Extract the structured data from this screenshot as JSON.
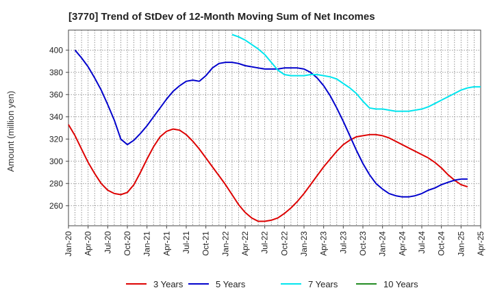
{
  "chart_data": {
    "type": "line",
    "title": "[3770]  Trend of StDev of 12-Month Moving Sum of Net Incomes",
    "ylabel": "Amount (million yen)",
    "xlabel": "",
    "ylim": [
      242,
      418
    ],
    "yticks": [
      260,
      280,
      300,
      320,
      340,
      360,
      380,
      400
    ],
    "xticks": [
      "Jan-20",
      "Apr-20",
      "Jul-20",
      "Oct-20",
      "Jan-21",
      "Apr-21",
      "Jul-21",
      "Oct-21",
      "Jan-22",
      "Apr-22",
      "Jul-22",
      "Oct-22",
      "Jan-23",
      "Apr-23",
      "Jul-23",
      "Oct-23",
      "Jan-24",
      "Apr-24",
      "Jul-24",
      "Oct-24",
      "Jan-25",
      "Apr-25"
    ],
    "grid": true,
    "legend_position": "bottom",
    "series": [
      {
        "name": "3 Years",
        "color": "#dd0000",
        "points": [
          [
            "2020-01",
            333
          ],
          [
            "2020-02",
            323
          ],
          [
            "2020-03",
            311
          ],
          [
            "2020-04",
            299
          ],
          [
            "2020-05",
            289
          ],
          [
            "2020-06",
            280
          ],
          [
            "2020-07",
            274
          ],
          [
            "2020-08",
            271
          ],
          [
            "2020-09",
            270
          ],
          [
            "2020-10",
            272
          ],
          [
            "2020-11",
            279
          ],
          [
            "2020-12",
            290
          ],
          [
            "2021-01",
            302
          ],
          [
            "2021-02",
            313
          ],
          [
            "2021-03",
            322
          ],
          [
            "2021-04",
            327
          ],
          [
            "2021-05",
            329
          ],
          [
            "2021-06",
            328
          ],
          [
            "2021-07",
            324
          ],
          [
            "2021-08",
            318
          ],
          [
            "2021-09",
            311
          ],
          [
            "2021-10",
            303
          ],
          [
            "2021-11",
            295
          ],
          [
            "2021-12",
            287
          ],
          [
            "2022-01",
            279
          ],
          [
            "2022-02",
            270
          ],
          [
            "2022-03",
            261
          ],
          [
            "2022-04",
            254
          ],
          [
            "2022-05",
            249
          ],
          [
            "2022-06",
            246
          ],
          [
            "2022-07",
            246
          ],
          [
            "2022-08",
            247
          ],
          [
            "2022-09",
            249
          ],
          [
            "2022-10",
            253
          ],
          [
            "2022-11",
            258
          ],
          [
            "2022-12",
            264
          ],
          [
            "2023-01",
            271
          ],
          [
            "2023-02",
            279
          ],
          [
            "2023-03",
            287
          ],
          [
            "2023-04",
            295
          ],
          [
            "2023-05",
            302
          ],
          [
            "2023-06",
            309
          ],
          [
            "2023-07",
            315
          ],
          [
            "2023-08",
            319
          ],
          [
            "2023-09",
            322
          ],
          [
            "2023-10",
            323
          ],
          [
            "2023-11",
            324
          ],
          [
            "2023-12",
            324
          ],
          [
            "2024-01",
            323
          ],
          [
            "2024-02",
            321
          ],
          [
            "2024-03",
            318
          ],
          [
            "2024-04",
            315
          ],
          [
            "2024-05",
            312
          ],
          [
            "2024-06",
            309
          ],
          [
            "2024-07",
            306
          ],
          [
            "2024-08",
            303
          ],
          [
            "2024-09",
            299
          ],
          [
            "2024-10",
            294
          ],
          [
            "2024-11",
            288
          ],
          [
            "2024-12",
            283
          ],
          [
            "2025-01",
            279
          ],
          [
            "2025-02",
            277
          ]
        ]
      },
      {
        "name": "5 Years",
        "color": "#0000cc",
        "points": [
          [
            "2020-02",
            400
          ],
          [
            "2020-03",
            393
          ],
          [
            "2020-04",
            385
          ],
          [
            "2020-05",
            375
          ],
          [
            "2020-06",
            364
          ],
          [
            "2020-07",
            351
          ],
          [
            "2020-08",
            337
          ],
          [
            "2020-09",
            320
          ],
          [
            "2020-10",
            315
          ],
          [
            "2020-11",
            319
          ],
          [
            "2020-12",
            325
          ],
          [
            "2021-01",
            332
          ],
          [
            "2021-02",
            340
          ],
          [
            "2021-03",
            348
          ],
          [
            "2021-04",
            356
          ],
          [
            "2021-05",
            363
          ],
          [
            "2021-06",
            368
          ],
          [
            "2021-07",
            372
          ],
          [
            "2021-08",
            373
          ],
          [
            "2021-09",
            372
          ],
          [
            "2021-10",
            377
          ],
          [
            "2021-11",
            384
          ],
          [
            "2021-12",
            388
          ],
          [
            "2022-01",
            389
          ],
          [
            "2022-02",
            389
          ],
          [
            "2022-03",
            388
          ],
          [
            "2022-04",
            386
          ],
          [
            "2022-05",
            385
          ],
          [
            "2022-06",
            384
          ],
          [
            "2022-07",
            383
          ],
          [
            "2022-08",
            383
          ],
          [
            "2022-09",
            383
          ],
          [
            "2022-10",
            384
          ],
          [
            "2022-11",
            384
          ],
          [
            "2022-12",
            384
          ],
          [
            "2023-01",
            383
          ],
          [
            "2023-02",
            380
          ],
          [
            "2023-03",
            375
          ],
          [
            "2023-04",
            368
          ],
          [
            "2023-05",
            359
          ],
          [
            "2023-06",
            348
          ],
          [
            "2023-07",
            336
          ],
          [
            "2023-08",
            323
          ],
          [
            "2023-09",
            310
          ],
          [
            "2023-10",
            298
          ],
          [
            "2023-11",
            288
          ],
          [
            "2023-12",
            280
          ],
          [
            "2024-01",
            275
          ],
          [
            "2024-02",
            271
          ],
          [
            "2024-03",
            269
          ],
          [
            "2024-04",
            268
          ],
          [
            "2024-05",
            268
          ],
          [
            "2024-06",
            269
          ],
          [
            "2024-07",
            271
          ],
          [
            "2024-08",
            274
          ],
          [
            "2024-09",
            276
          ],
          [
            "2024-10",
            279
          ],
          [
            "2024-11",
            281
          ],
          [
            "2024-12",
            283
          ],
          [
            "2025-01",
            284
          ],
          [
            "2025-02",
            284
          ]
        ]
      },
      {
        "name": "7 Years",
        "color": "#00e5ee",
        "points": [
          [
            "2022-02",
            414
          ],
          [
            "2022-03",
            412
          ],
          [
            "2022-04",
            409
          ],
          [
            "2022-05",
            405
          ],
          [
            "2022-06",
            401
          ],
          [
            "2022-07",
            396
          ],
          [
            "2022-08",
            389
          ],
          [
            "2022-09",
            382
          ],
          [
            "2022-10",
            378
          ],
          [
            "2022-11",
            377
          ],
          [
            "2022-12",
            377
          ],
          [
            "2023-01",
            377
          ],
          [
            "2023-02",
            378
          ],
          [
            "2023-03",
            378
          ],
          [
            "2023-04",
            377
          ],
          [
            "2023-05",
            376
          ],
          [
            "2023-06",
            374
          ],
          [
            "2023-07",
            370
          ],
          [
            "2023-08",
            366
          ],
          [
            "2023-09",
            361
          ],
          [
            "2023-10",
            354
          ],
          [
            "2023-11",
            348
          ],
          [
            "2023-12",
            347
          ],
          [
            "2024-01",
            347
          ],
          [
            "2024-02",
            346
          ],
          [
            "2024-03",
            345
          ],
          [
            "2024-04",
            345
          ],
          [
            "2024-05",
            345
          ],
          [
            "2024-06",
            346
          ],
          [
            "2024-07",
            347
          ],
          [
            "2024-08",
            349
          ],
          [
            "2024-09",
            352
          ],
          [
            "2024-10",
            355
          ],
          [
            "2024-11",
            358
          ],
          [
            "2024-12",
            361
          ],
          [
            "2025-01",
            364
          ],
          [
            "2025-02",
            366
          ],
          [
            "2025-03",
            367
          ],
          [
            "2025-04",
            367
          ]
        ]
      },
      {
        "name": "10 Years",
        "color": "#228b22",
        "points": []
      }
    ]
  }
}
